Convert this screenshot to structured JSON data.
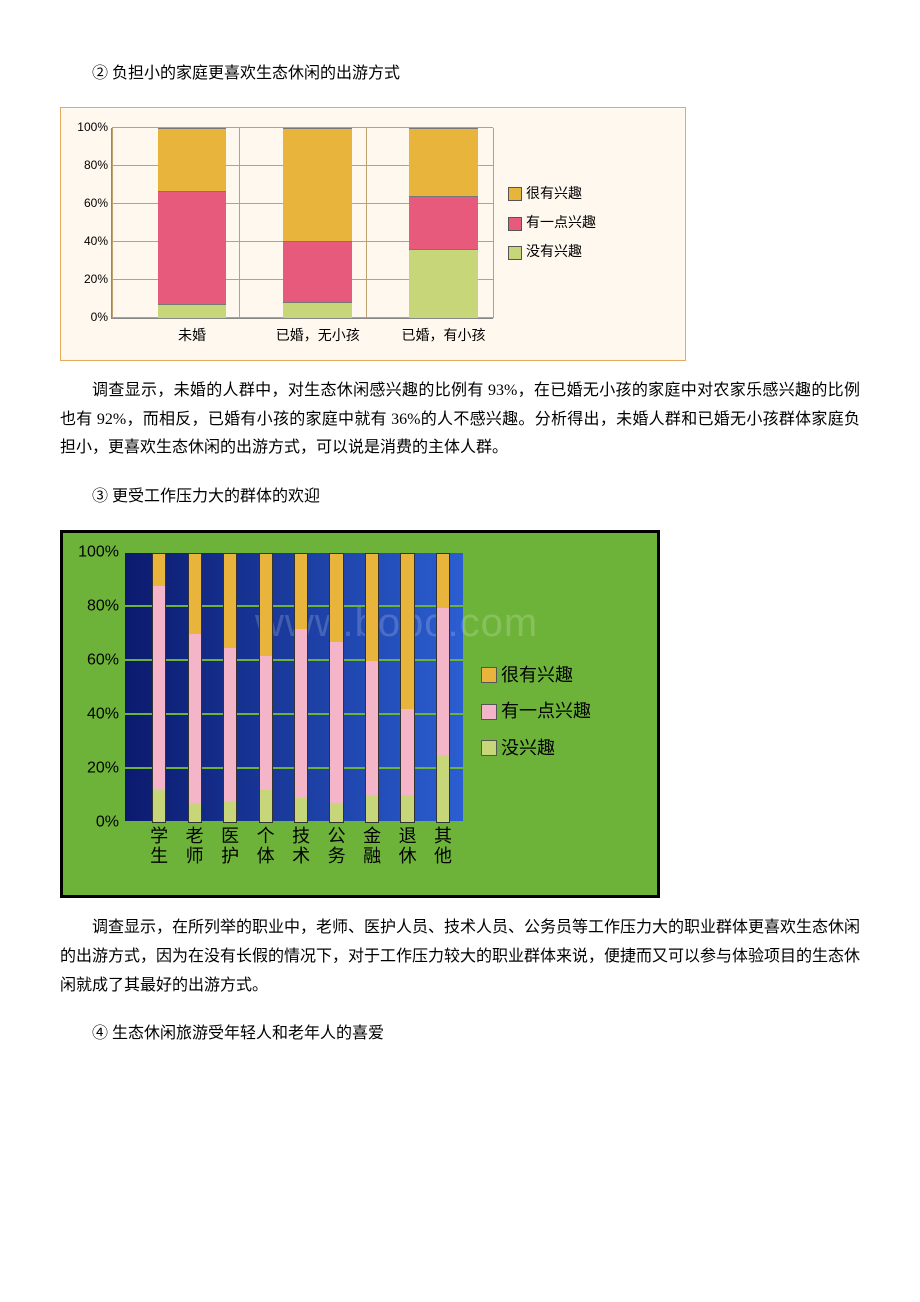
{
  "text": {
    "h2": "② 负担小的家庭更喜欢生态休闲的出游方式",
    "p1": "调查显示，未婚的人群中，对生态休闲感兴趣的比例有 93%，在已婚无小孩的家庭中对农家乐感兴趣的比例也有 92%，而相反，已婚有小孩的家庭中就有 36%的人不感兴趣。分析得出，未婚人群和已婚无小孩群体家庭负担小，更喜欢生态休闲的出游方式，可以说是消费的主体人群。",
    "h3": "③ 更受工作压力大的群体的欢迎",
    "p2": "调查显示，在所列举的职业中，老师、医护人员、技术人员、公务员等工作压力大的职业群体更喜欢生态休闲的出游方式，因为在没有长假的情况下，对于工作压力较大的职业群体来说，便捷而又可以参与体验项目的生态休闲就成了其最好的出游方式。",
    "h4": "④ 生态休闲旅游受年轻人和老年人的喜爱"
  },
  "chart1": {
    "type": "stacked-bar",
    "background_color": "#fff8ef",
    "border_color": "#e6a85c",
    "grid_color": "#c0a070",
    "axis_color": "#888888",
    "ylim": [
      0,
      100
    ],
    "ytick_step": 20,
    "yticks": [
      "0%",
      "20%",
      "40%",
      "60%",
      "80%",
      "100%"
    ],
    "categories": [
      "未婚",
      "已婚，无小孩",
      "已婚，有小孩"
    ],
    "series_order": [
      "没有兴趣",
      "有一点兴趣",
      "很有兴趣"
    ],
    "series_colors": {
      "很有兴趣": "#e9b43b",
      "有一点兴趣": "#e85a7c",
      "没有兴趣": "#c8d67a"
    },
    "values": {
      "没有兴趣": [
        7,
        8,
        36
      ],
      "有一点兴趣": [
        60,
        32,
        28
      ],
      "很有兴趣": [
        33,
        60,
        36
      ]
    },
    "legend_labels": [
      "很有兴趣",
      "有一点兴趣",
      "没有兴趣"
    ],
    "bar_width_pct": 18,
    "bar_left_pct": [
      12,
      45,
      78
    ],
    "label_fontsize": 14,
    "tick_fontsize": 12
  },
  "chart2": {
    "type": "stacked-bar",
    "frame_border_color": "#000000",
    "background_color": "#6db33a",
    "plot_gradient_from": "#0b1a6e",
    "plot_gradient_to": "#2b5ed1",
    "grid_color": "#6db33a",
    "ylim": [
      0,
      100
    ],
    "ytick_step": 20,
    "yticks": [
      "0%",
      "20%",
      "40%",
      "60%",
      "80%",
      "100%"
    ],
    "categories": [
      "学生",
      "老师",
      "医护",
      "个体",
      "技术",
      "公务",
      "金融",
      "退休",
      "其他"
    ],
    "series_order": [
      "没兴趣",
      "有一点兴趣",
      "很有兴趣"
    ],
    "series_colors": {
      "很有兴趣": "#e9b43b",
      "有一点兴趣": "#f5b5c9",
      "没兴趣": "#c8d67a"
    },
    "values": {
      "没兴趣": [
        12,
        7,
        8,
        12,
        9,
        7,
        10,
        10,
        25
      ],
      "有一点兴趣": [
        76,
        63,
        57,
        50,
        63,
        60,
        50,
        32,
        55
      ],
      "很有兴趣": [
        12,
        30,
        35,
        38,
        28,
        33,
        40,
        58,
        20
      ]
    },
    "legend_labels": [
      "很有兴趣",
      "有一点兴趣",
      "没兴趣"
    ],
    "bar_width_pct": 4.2,
    "bar_left_pct": [
      8,
      18.5,
      29,
      39.5,
      50,
      60.5,
      71,
      81.5,
      92
    ],
    "label_fontsize": 18,
    "tick_fontsize": 16,
    "watermark": "www.bobo.com"
  }
}
